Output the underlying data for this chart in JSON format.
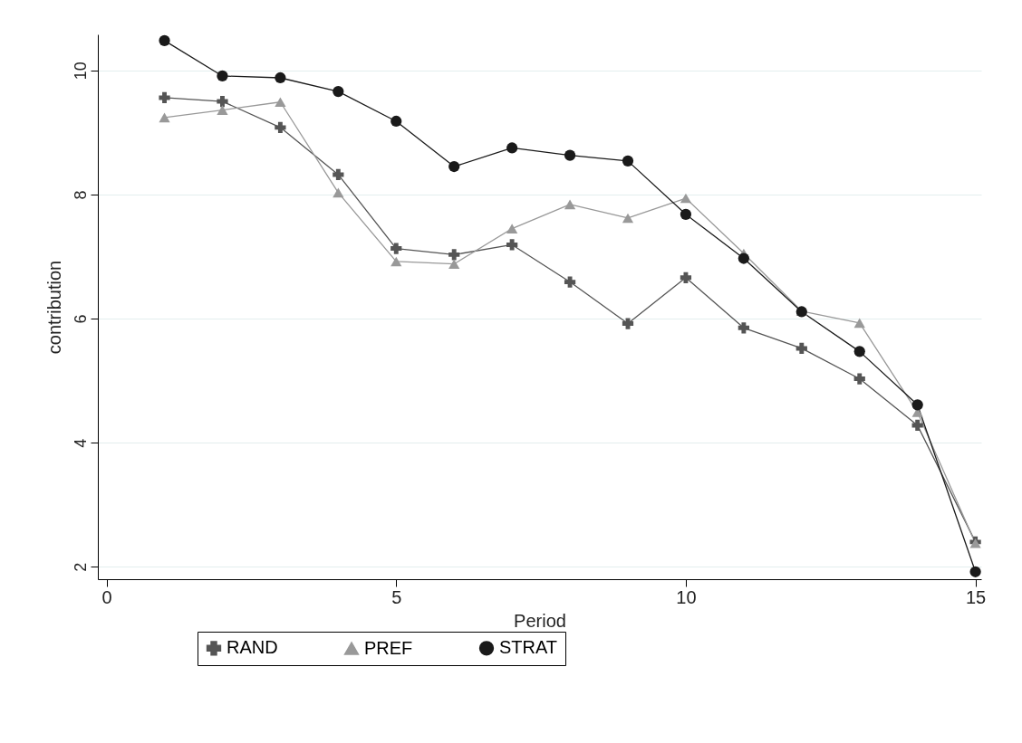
{
  "chart_data": {
    "type": "line",
    "xlabel": "Period",
    "ylabel": "contribution",
    "x": [
      1,
      2,
      3,
      4,
      5,
      6,
      7,
      8,
      9,
      10,
      11,
      12,
      13,
      14,
      15
    ],
    "series": [
      {
        "name": "RAND",
        "color": "#555555",
        "marker": "cross",
        "values": [
          9.56,
          9.5,
          9.08,
          8.32,
          7.13,
          7.03,
          7.19,
          6.59,
          5.92,
          6.66,
          5.85,
          5.52,
          5.03,
          4.28,
          2.4
        ]
      },
      {
        "name": "PREF",
        "color": "#999999",
        "marker": "triangle",
        "values": [
          9.24,
          9.36,
          9.49,
          8.03,
          6.92,
          6.88,
          7.45,
          7.84,
          7.62,
          7.94,
          7.05,
          6.12,
          5.93,
          4.49,
          2.38
        ]
      },
      {
        "name": "STRAT",
        "color": "#1a1a1a",
        "marker": "circle",
        "values": [
          10.48,
          9.91,
          9.88,
          9.66,
          9.18,
          8.45,
          8.75,
          8.63,
          8.54,
          7.68,
          6.97,
          6.11,
          5.47,
          4.61,
          1.92
        ]
      }
    ],
    "xlim": [
      -0.15,
      15.1
    ],
    "xticks": [
      0,
      5,
      10,
      15
    ],
    "ylim": [
      1.8,
      10.58
    ],
    "yticks": [
      2,
      4,
      6,
      8,
      10
    ],
    "grid": "y",
    "legend": "bottom",
    "line_style": "solid"
  }
}
